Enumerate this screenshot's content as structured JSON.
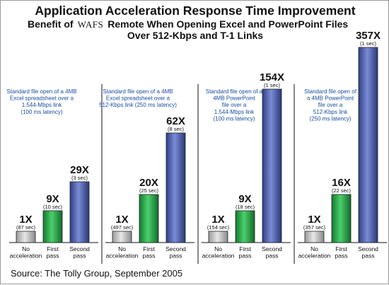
{
  "title": "Application Acceleration Response Time Improvement",
  "subtitle": {
    "prefix": "Benefit of",
    "logo": "WAFS",
    "rest_line1": "Remote When Opening Excel and PowerPoint Files",
    "line2": "Over 512-Kbps and T-1 Links"
  },
  "source": "Source: The Tolly Group, September 2005",
  "colors": {
    "no_acceleration": "#c8c8c8",
    "first_pass": "#2aa84a",
    "second_pass": "#4a5ca8",
    "note_text": "#1a4fa0"
  },
  "chart_data": [
    {
      "type": "bar",
      "note": [
        "Standard file open of a 4MB",
        "Excel spreadsheet over a",
        "1.544-Mbps link",
        "(100 ms latency)"
      ],
      "categories": [
        [
          "No",
          "acceleration"
        ],
        [
          "First",
          "pass"
        ],
        [
          "Second",
          "pass"
        ]
      ],
      "labels": [
        "1X",
        "9X",
        "29X"
      ],
      "times": [
        "(87 sec)",
        "(10 sec)",
        "(3 sec)"
      ],
      "values": [
        1,
        9,
        29
      ]
    },
    {
      "type": "bar",
      "note": [
        "Standard file open of a 4MB",
        "Excel spreadsheet over a",
        "512-Kbps link (250 ms latency)"
      ],
      "categories": [
        [
          "No",
          "acceleration"
        ],
        [
          "First",
          "pass"
        ],
        [
          "Second",
          "pass"
        ]
      ],
      "labels": [
        "1X",
        "20X",
        "62X"
      ],
      "times": [
        "(497 sec)",
        "(25 sec)",
        "(8 sec)"
      ],
      "values": [
        1,
        20,
        62
      ]
    },
    {
      "type": "bar",
      "note": [
        "Standard file open of a",
        "4MB PowerPoint",
        "file over a",
        "1.544-Mbps link",
        "(100 ms latency)"
      ],
      "categories": [
        [
          "No",
          "acceleration"
        ],
        [
          "First",
          "pass"
        ],
        [
          "Second",
          "pass"
        ]
      ],
      "labels": [
        "1X",
        "9X",
        "154X"
      ],
      "times": [
        "(154 sec)",
        "(18 sec)",
        "(1 sec)"
      ],
      "values": [
        1,
        9,
        154
      ]
    },
    {
      "type": "bar",
      "note": [
        "Standard file open of",
        "a 4MB PowerPoint",
        "file over a",
        "512-Kbps link",
        "(250 ms latency)"
      ],
      "categories": [
        [
          "No",
          "acceleration"
        ],
        [
          "First",
          "pass"
        ],
        [
          "Second",
          "pass"
        ]
      ],
      "labels": [
        "1X",
        "16X",
        "357X"
      ],
      "times": [
        "(357 sec)",
        "(22 sec)",
        "(1 sec)"
      ],
      "values": [
        1,
        16,
        357
      ]
    }
  ]
}
